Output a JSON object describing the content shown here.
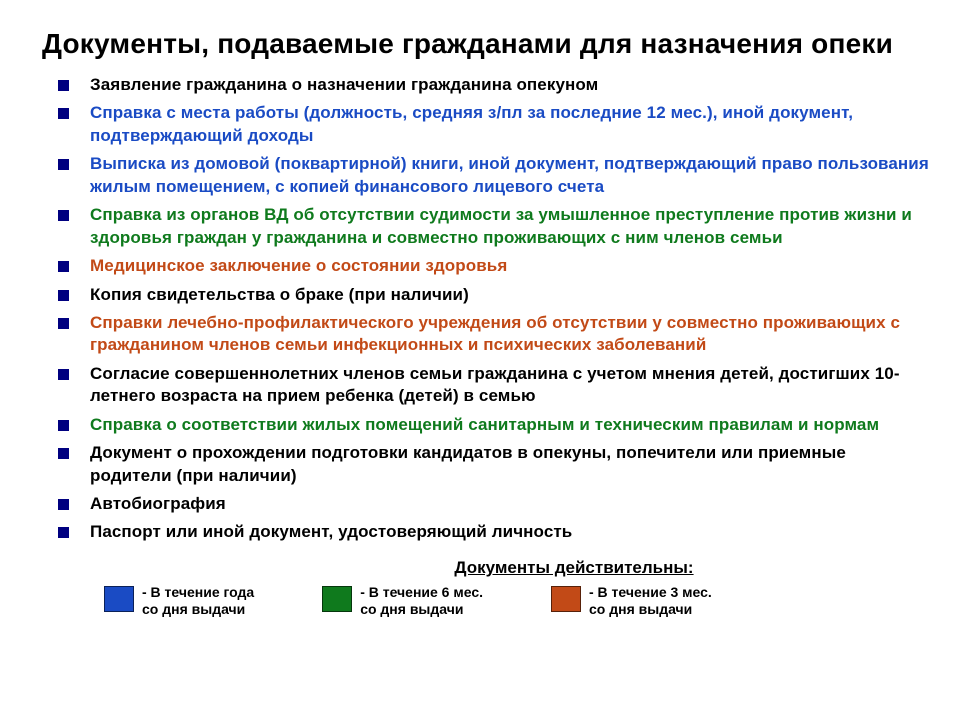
{
  "colors": {
    "black": "#000000",
    "blue": "#1a4bc4",
    "green": "#0f7a1d",
    "red": "#c24a17",
    "bullet": "#000080",
    "swatch_blue": "#1a4bc4",
    "swatch_green": "#0f7a1d",
    "swatch_red": "#c24a17"
  },
  "title": "Документы, подаваемые гражданами для назначения опеки",
  "items": [
    {
      "text": "Заявление гражданина о назначении гражданина опекуном",
      "colorKey": "black"
    },
    {
      "text": "Справка с места работы (должность, средняя з/пл за последние 12 мес.), иной документ, подтверждающий доходы",
      "colorKey": "blue"
    },
    {
      "text": "Выписка из домовой (поквартирной) книги, иной документ, подтверждающий право пользования жилым помещением, с копией финансового лицевого счета",
      "colorKey": "blue"
    },
    {
      "text": "Справка из органов ВД об отсутствии судимости за умышленное преступление против жизни и здоровья граждан у гражданина и совместно проживающих с ним членов семьи",
      "colorKey": "green"
    },
    {
      "text": "Медицинское заключение о состоянии здоровья",
      "colorKey": "red"
    },
    {
      "text": "Копия свидетельства о браке (при наличии)",
      "colorKey": "black"
    },
    {
      "text": "Справки лечебно-профилактического учреждения об отсутствии у совместно проживающих с гражданином членов семьи инфекционных и психических заболеваний",
      "colorKey": "red"
    },
    {
      "text": "Согласие совершеннолетних членов семьи гражданина с учетом мнения детей, достигших 10-летнего возраста на прием ребенка (детей) в семью",
      "colorKey": "black"
    },
    {
      "text": "Справка о соответствии жилых помещений санитарным и техническим правилам и нормам",
      "colorKey": "green"
    },
    {
      "text": "Документ о прохождении подготовки кандидатов в опекуны, попечители или приемные родители (при наличии)",
      "colorKey": "black"
    },
    {
      "text": "Автобиография",
      "colorKey": "black"
    },
    {
      "text": "Паспорт или иной документ, удостоверяющий личность",
      "colorKey": "black"
    }
  ],
  "legend": {
    "title": "Документы действительны:",
    "entries": [
      {
        "swatchKey": "swatch_blue",
        "text": "- В течение года\n  со дня выдачи"
      },
      {
        "swatchKey": "swatch_green",
        "text": "- В течение 6 мес.\n  со дня выдачи"
      },
      {
        "swatchKey": "swatch_red",
        "text": "- В течение 3 мес.\n  со дня выдачи"
      }
    ]
  }
}
